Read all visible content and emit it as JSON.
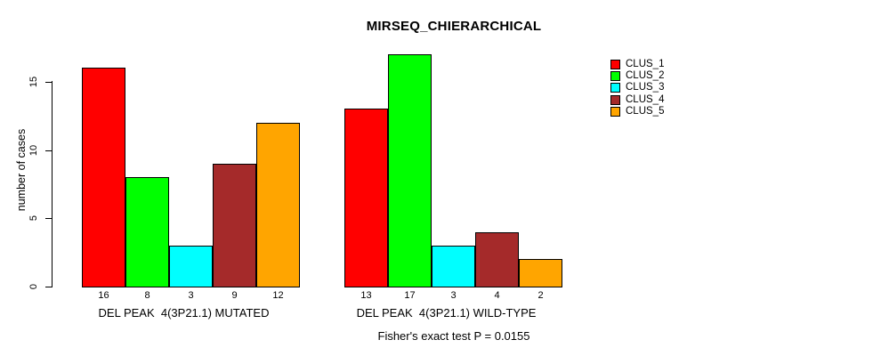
{
  "chart_data": {
    "type": "bar",
    "title": "MIRSEQ_CHIERARCHICAL",
    "ylabel": "number of cases",
    "xlabel": "",
    "ylim": [
      0,
      17
    ],
    "yticks": [
      0,
      5,
      10,
      15
    ],
    "grid": false,
    "legend_position": "right",
    "legend": [
      "CLUS_1",
      "CLUS_2",
      "CLUS_3",
      "CLUS_4",
      "CLUS_5"
    ],
    "colors": [
      "#FF0000",
      "#00FF00",
      "#00FFFF",
      "#A52A2A",
      "#FFA500"
    ],
    "categories": [
      "CLUS_1",
      "CLUS_2",
      "CLUS_3",
      "CLUS_4",
      "CLUS_5"
    ],
    "groups": [
      {
        "label": "DEL PEAK  4(3P21.1) MUTATED",
        "values": [
          16,
          8,
          3,
          9,
          12
        ]
      },
      {
        "label": "DEL PEAK  4(3P21.1) WILD-TYPE",
        "values": [
          13,
          17,
          3,
          4,
          2
        ]
      }
    ],
    "footnote": "Fisher's exact test P = 0.0155"
  }
}
